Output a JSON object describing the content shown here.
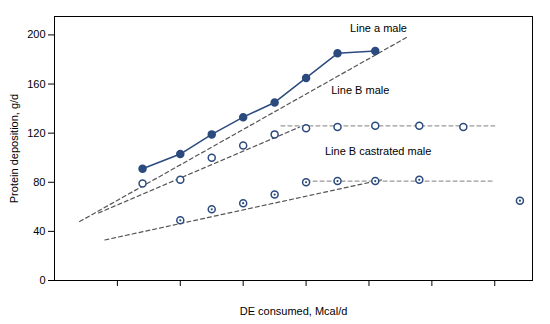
{
  "chart_data": {
    "type": "line",
    "xlabel": "DE consumed, Mcal/d",
    "ylabel": "Protein deposition, g/d",
    "xlim": [
      3.5,
      7.3
    ],
    "ylim": [
      0,
      215
    ],
    "xticks": [
      4.0,
      4.5,
      5.0,
      5.5,
      6.0,
      6.5,
      7.0
    ],
    "yticks": [
      0,
      40,
      80,
      120,
      160,
      200
    ],
    "tick_labels": "y",
    "grid": false,
    "series": [
      {
        "type": "line",
        "color": "#555555",
        "line_style": "dashed",
        "x": [
          3.7,
          6.3
        ],
        "values": [
          48,
          198
        ]
      },
      {
        "type": "line",
        "color": "#2b4a7e",
        "line_style": "solid",
        "marker": "circle",
        "x": [
          4.2,
          4.5,
          4.75,
          5.0,
          5.25,
          5.5,
          5.75,
          6.05
        ],
        "values": [
          91,
          103,
          119,
          133,
          145,
          165,
          185,
          187
        ]
      },
      {
        "type": "line",
        "color": "#555555",
        "line_style": "dashed",
        "x": [
          3.85,
          5.45
        ],
        "values": [
          55,
          125
        ]
      },
      {
        "type": "line",
        "color": "#999999",
        "line_style": "dashed",
        "x": [
          5.3,
          7.0
        ],
        "values": [
          126,
          126
        ]
      },
      {
        "type": "scatter",
        "color": "#2b4a7e",
        "marker": "open_circle",
        "x": [
          4.2,
          4.5,
          4.75,
          5.0,
          5.25,
          5.5,
          5.75,
          6.05,
          6.4,
          6.75
        ],
        "values": [
          79,
          82,
          100,
          110,
          119,
          124,
          125,
          126,
          126,
          125
        ]
      },
      {
        "type": "line",
        "color": "#555555",
        "line_style": "dashed",
        "x": [
          3.9,
          6.1
        ],
        "values": [
          33,
          82
        ]
      },
      {
        "type": "line",
        "color": "#999999",
        "line_style": "dashed",
        "x": [
          5.5,
          7.0
        ],
        "values": [
          81,
          81
        ]
      },
      {
        "type": "scatter",
        "color": "#2b4a7e",
        "marker": "open_circle_dot",
        "x": [
          4.5,
          4.75,
          5.0,
          5.25,
          5.5,
          5.75,
          6.05,
          6.4,
          7.2
        ],
        "values": [
          49,
          58,
          63,
          70,
          80,
          81,
          81,
          82,
          65
        ]
      }
    ],
    "annotations": [
      {
        "text": "Line a male",
        "x": 5.85,
        "y": 202
      },
      {
        "text": "Line B male",
        "x": 5.7,
        "y": 152
      },
      {
        "text": "Line B castrated male",
        "x": 5.65,
        "y": 102
      }
    ]
  }
}
